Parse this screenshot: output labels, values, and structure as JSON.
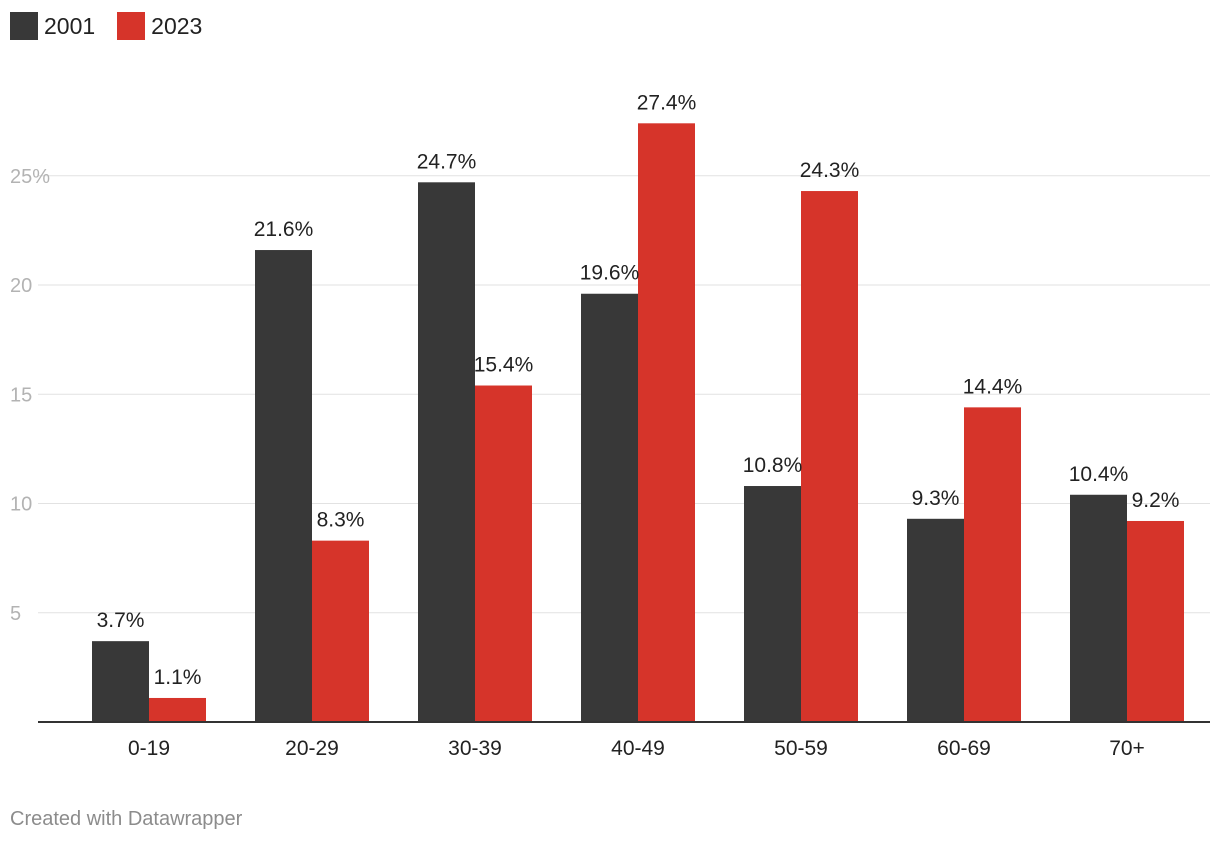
{
  "chart_data": {
    "type": "bar",
    "categories": [
      "0-19",
      "20-29",
      "30-39",
      "40-49",
      "50-59",
      "60-69",
      "70+"
    ],
    "series": [
      {
        "name": "2001",
        "color": "#383838",
        "values": [
          3.7,
          21.6,
          24.7,
          19.6,
          10.8,
          9.3,
          10.4
        ],
        "labels": [
          "3.7%",
          "21.6%",
          "24.7%",
          "19.6%",
          "10.8%",
          "9.3%",
          "10.4%"
        ]
      },
      {
        "name": "2023",
        "color": "#d6342a",
        "values": [
          1.1,
          8.3,
          15.4,
          27.4,
          24.3,
          14.4,
          9.2
        ],
        "labels": [
          "1.1%",
          "8.3%",
          "15.4%",
          "27.4%",
          "24.3%",
          "14.4%",
          "9.2%"
        ]
      }
    ],
    "y_ticks": [
      5,
      10,
      15,
      20,
      25
    ],
    "y_tick_labels": [
      "5",
      "10",
      "15",
      "20",
      "25%"
    ],
    "ylim": [
      0,
      27.4
    ],
    "grid": true,
    "legend_position": "top-left",
    "title": "",
    "xlabel": "",
    "ylabel": ""
  },
  "legend": {
    "items": [
      {
        "label": "2001",
        "color": "#383838"
      },
      {
        "label": "2023",
        "color": "#d6342a"
      }
    ]
  },
  "footer": {
    "credit": "Created with Datawrapper"
  }
}
